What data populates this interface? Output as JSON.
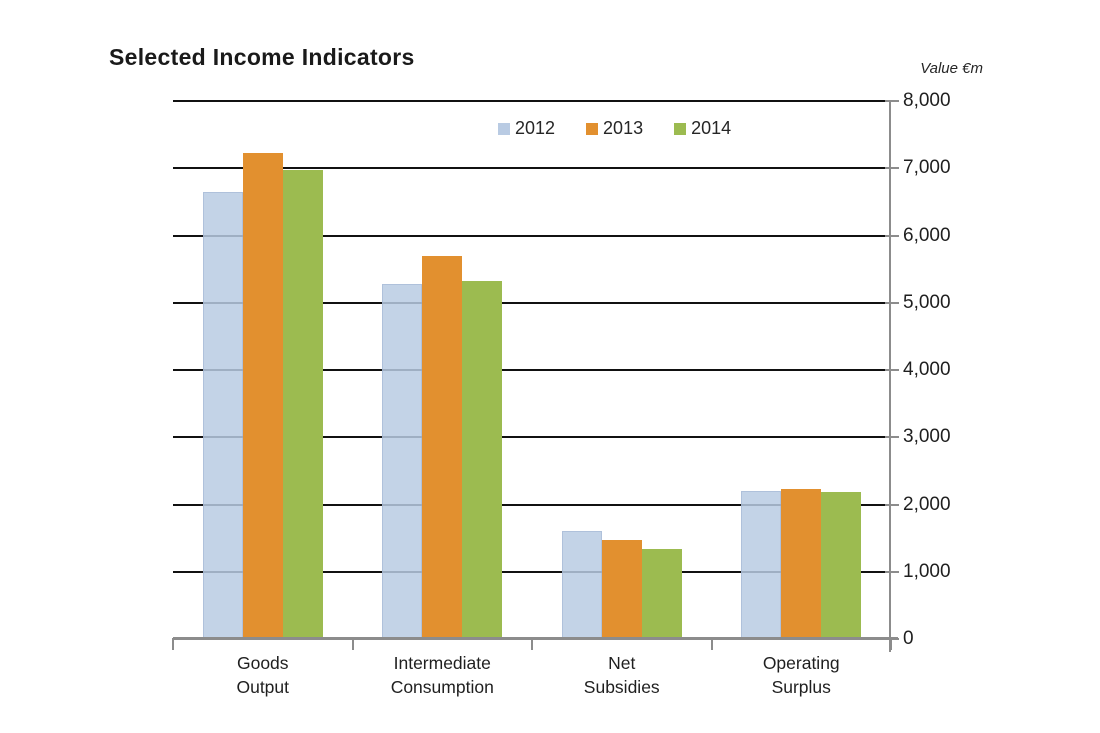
{
  "header": {
    "title": "Selected Income Indicators",
    "units_label": "Value €m"
  },
  "colors": {
    "gridline": "#111111",
    "axis": "#8c8c8c",
    "text": "#1f1f1f",
    "series_2012": "#b9cbe3",
    "series_2013": "#e2902f",
    "series_2014": "#9cbb50"
  },
  "chart_data": {
    "type": "bar",
    "title": "Selected Income Indicators",
    "ylabel": "Value €m",
    "xlabel": "",
    "grid": true,
    "legend_position": "top-center",
    "ylim": [
      0,
      8000
    ],
    "ytick_step": 1000,
    "ytick_labels": [
      "0",
      "1,000",
      "2,000",
      "3,000",
      "4,000",
      "5,000",
      "6,000",
      "7,000",
      "8,000"
    ],
    "categories": [
      "Goods Output",
      "Intermediate Consumption",
      "Net Subsidies",
      "Operating Surplus"
    ],
    "category_label_lines": [
      [
        "Goods",
        "Output"
      ],
      [
        "Intermediate",
        "Consumption"
      ],
      [
        "Net",
        "Subsidies"
      ],
      [
        "Operating",
        "Surplus"
      ]
    ],
    "series": [
      {
        "name": "2012",
        "color": "#b9cbe3",
        "translucent": true,
        "values": [
          6650,
          5280,
          1600,
          2200
        ]
      },
      {
        "name": "2013",
        "color": "#e2902f",
        "translucent": false,
        "values": [
          7230,
          5700,
          1470,
          2230
        ]
      },
      {
        "name": "2014",
        "color": "#9cbb50",
        "translucent": false,
        "values": [
          6980,
          5320,
          1340,
          2190
        ]
      }
    ]
  }
}
